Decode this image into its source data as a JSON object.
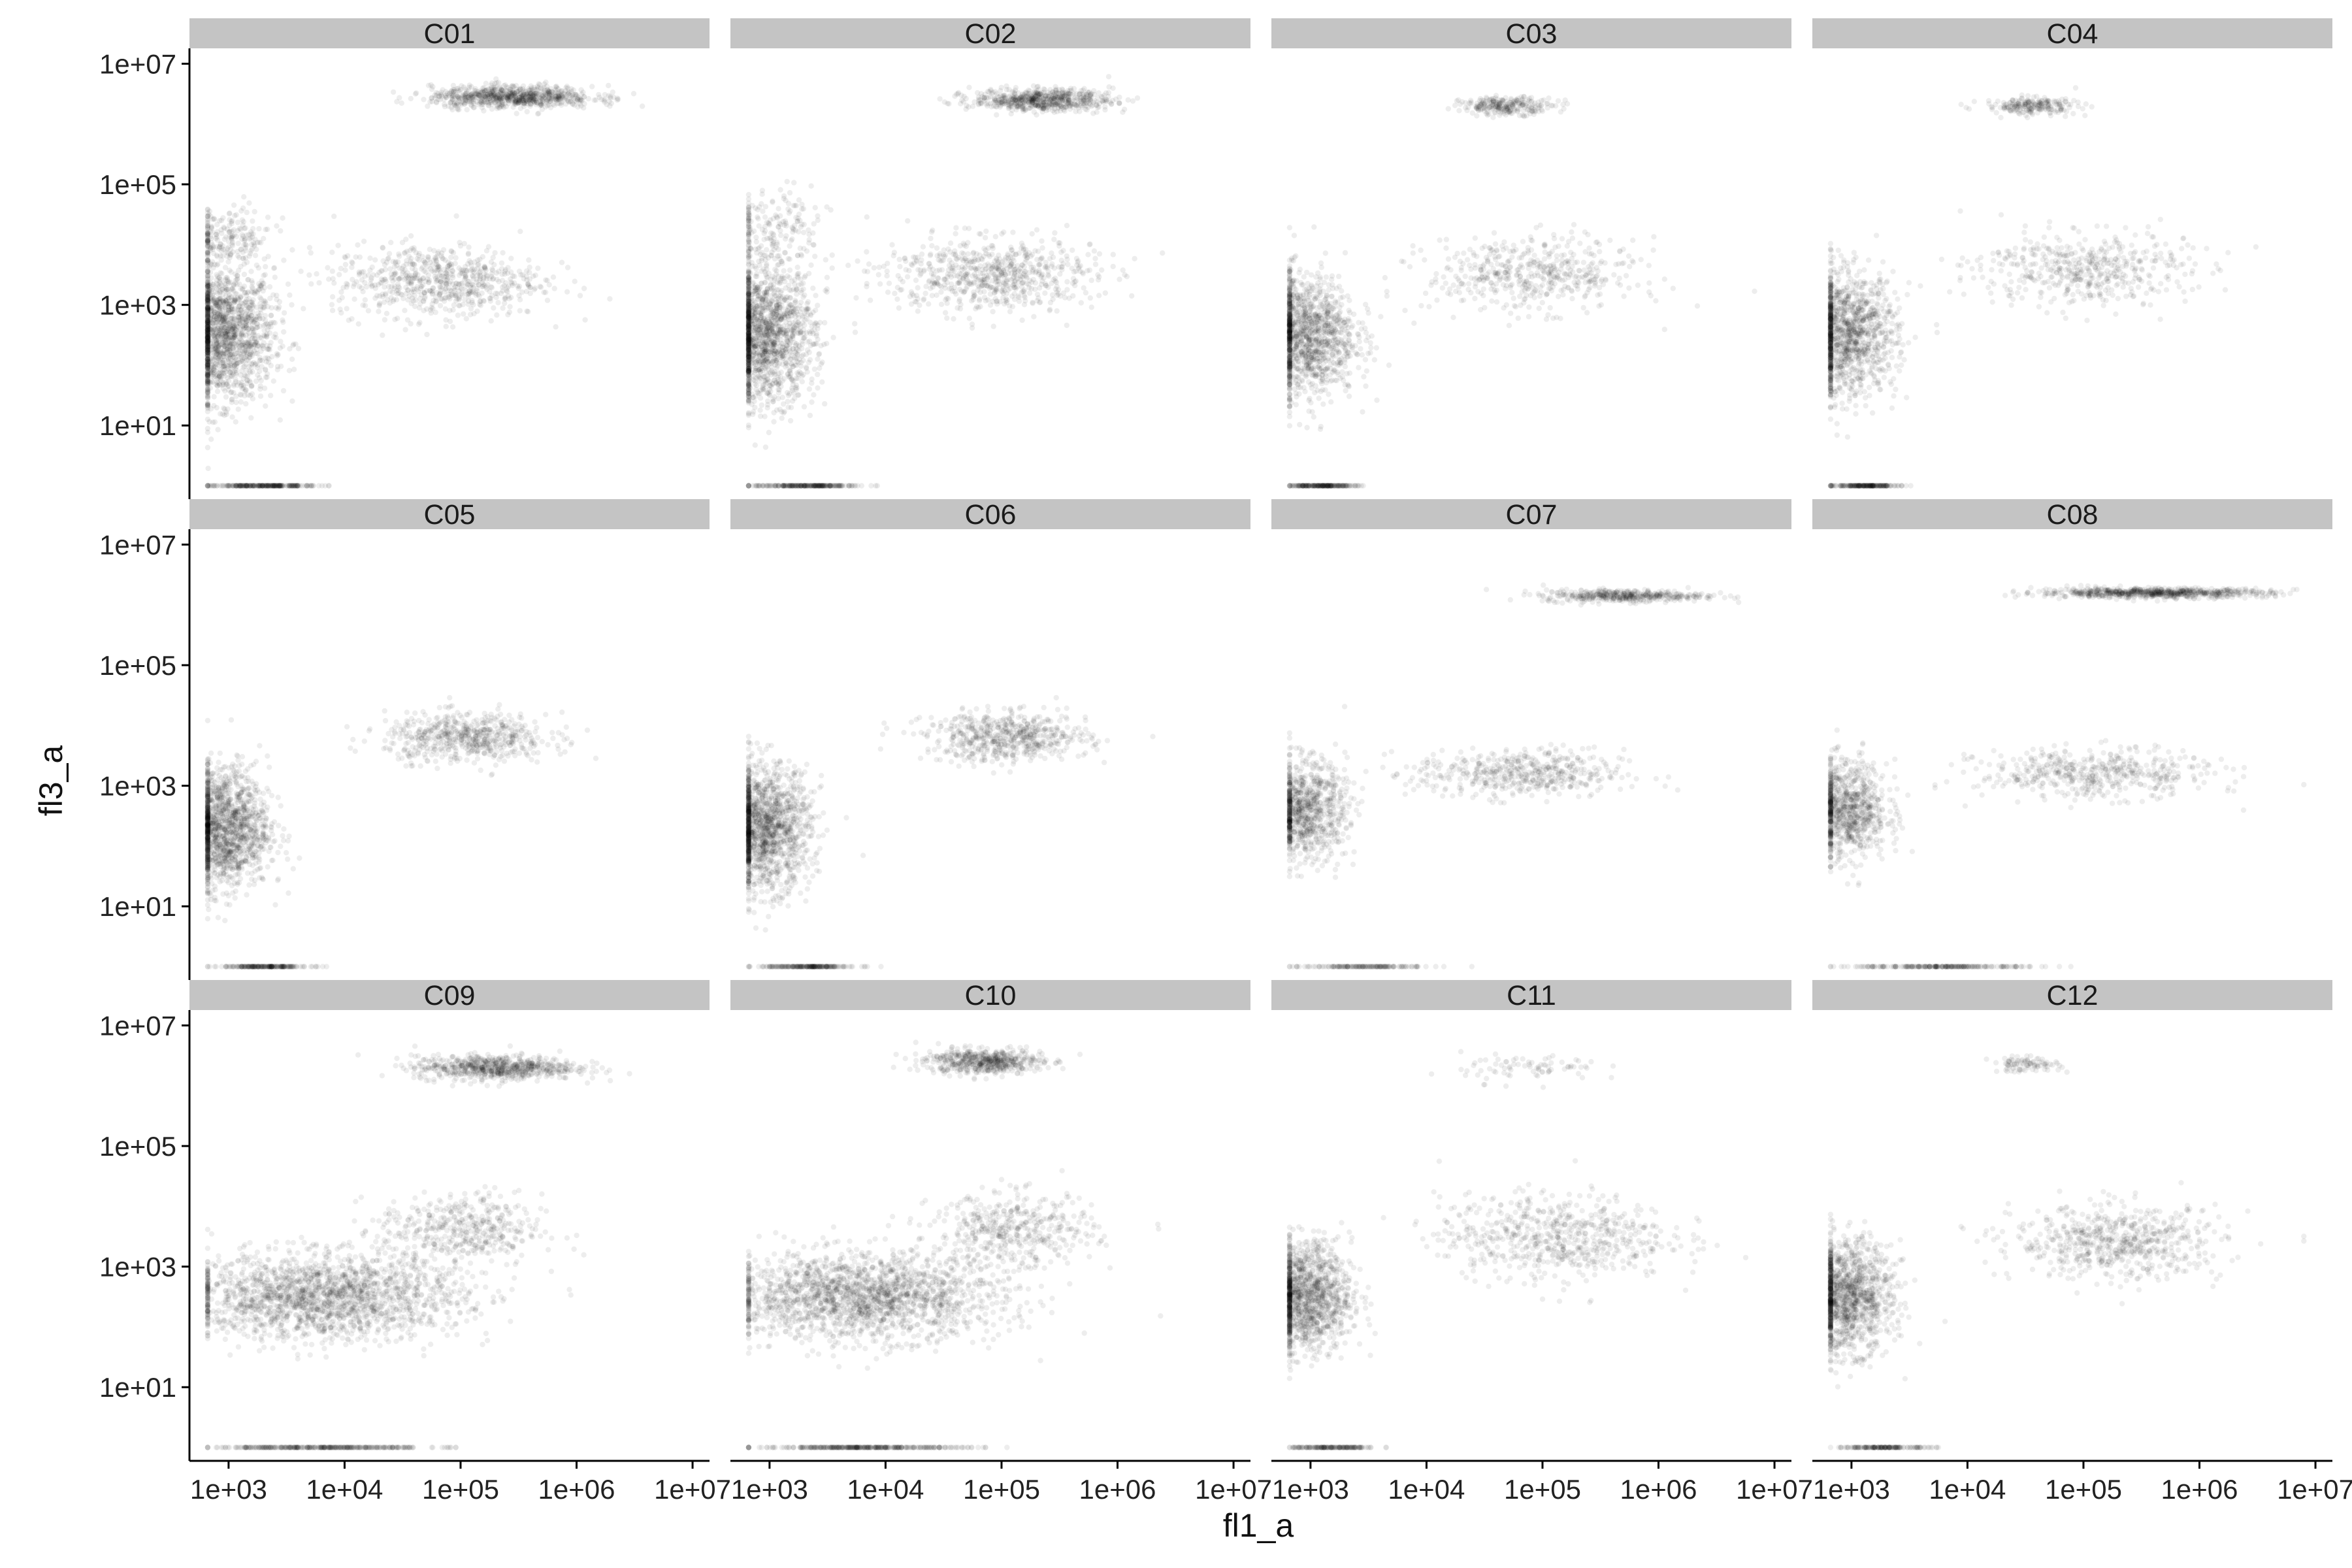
{
  "chart_data": {
    "type": "scatter",
    "layout": "facet_wrap",
    "facet_rows": 3,
    "facet_cols": 4,
    "xlabel": "fl1_a",
    "ylabel": "fl3_a",
    "x_scale": "log10",
    "y_scale": "log10",
    "xlim": [
      460,
      14000000
    ],
    "ylim": [
      0.6,
      18000000
    ],
    "x_ticks": [
      1000,
      10000,
      100000,
      1000000,
      10000000
    ],
    "x_tick_labels": [
      "1e+03",
      "1e+04",
      "1e+05",
      "1e+06",
      "1e+07"
    ],
    "y_ticks": [
      10,
      1000,
      100000,
      10000000
    ],
    "y_tick_labels": [
      "1e+01",
      "1e+03",
      "1e+05",
      "1e+07"
    ],
    "point_color": "#000000",
    "point_alpha": 0.1,
    "strip_color": "#c4c4c4",
    "grid": false,
    "legend": "none",
    "panels": [
      {
        "label": "C01",
        "clusters": [
          {
            "x_log10": 2.95,
            "y_log10": 2.5,
            "x_sd": 0.22,
            "y_sd": 0.55,
            "n": 1600
          },
          {
            "x_log10": 4.8,
            "y_log10": 3.4,
            "x_sd": 0.45,
            "y_sd": 0.3,
            "n": 700
          },
          {
            "x_log10": 5.45,
            "y_log10": 6.45,
            "x_sd": 0.35,
            "y_sd": 0.09,
            "n": 800
          },
          {
            "x_log10": 2.95,
            "y_log10": 4.1,
            "x_sd": 0.22,
            "y_sd": 0.25,
            "n": 220
          },
          {
            "x_log10": 3.3,
            "y_log10": 0,
            "x_sd": 0.22,
            "y_sd": 0,
            "n": 260
          }
        ]
      },
      {
        "label": "C02",
        "clusters": [
          {
            "x_log10": 2.95,
            "y_log10": 2.5,
            "x_sd": 0.22,
            "y_sd": 0.55,
            "n": 1600
          },
          {
            "x_log10": 4.9,
            "y_log10": 3.5,
            "x_sd": 0.45,
            "y_sd": 0.3,
            "n": 700
          },
          {
            "x_log10": 5.35,
            "y_log10": 6.4,
            "x_sd": 0.3,
            "y_sd": 0.09,
            "n": 650
          },
          {
            "x_log10": 3.0,
            "y_log10": 4.2,
            "x_sd": 0.25,
            "y_sd": 0.35,
            "n": 200
          },
          {
            "x_log10": 3.3,
            "y_log10": 0,
            "x_sd": 0.22,
            "y_sd": 0,
            "n": 240
          }
        ]
      },
      {
        "label": "C03",
        "clusters": [
          {
            "x_log10": 2.95,
            "y_log10": 2.5,
            "x_sd": 0.22,
            "y_sd": 0.5,
            "n": 1300
          },
          {
            "x_log10": 4.9,
            "y_log10": 3.5,
            "x_sd": 0.45,
            "y_sd": 0.3,
            "n": 500
          },
          {
            "x_log10": 4.7,
            "y_log10": 6.3,
            "x_sd": 0.2,
            "y_sd": 0.07,
            "n": 260
          },
          {
            "x_log10": 3.1,
            "y_log10": 0,
            "x_sd": 0.15,
            "y_sd": 0,
            "n": 200
          }
        ]
      },
      {
        "label": "C04",
        "clusters": [
          {
            "x_log10": 2.95,
            "y_log10": 2.5,
            "x_sd": 0.22,
            "y_sd": 0.5,
            "n": 1300
          },
          {
            "x_log10": 5.0,
            "y_log10": 3.6,
            "x_sd": 0.45,
            "y_sd": 0.3,
            "n": 500
          },
          {
            "x_log10": 4.55,
            "y_log10": 6.3,
            "x_sd": 0.2,
            "y_sd": 0.07,
            "n": 220
          },
          {
            "x_log10": 3.1,
            "y_log10": 0,
            "x_sd": 0.15,
            "y_sd": 0,
            "n": 200
          }
        ]
      },
      {
        "label": "C05",
        "clusters": [
          {
            "x_log10": 2.95,
            "y_log10": 2.3,
            "x_sd": 0.2,
            "y_sd": 0.5,
            "n": 1500
          },
          {
            "x_log10": 5.05,
            "y_log10": 3.8,
            "x_sd": 0.35,
            "y_sd": 0.2,
            "n": 600
          },
          {
            "x_log10": 3.3,
            "y_log10": 0,
            "x_sd": 0.2,
            "y_sd": 0,
            "n": 200
          }
        ]
      },
      {
        "label": "C06",
        "clusters": [
          {
            "x_log10": 2.95,
            "y_log10": 2.3,
            "x_sd": 0.2,
            "y_sd": 0.5,
            "n": 1500
          },
          {
            "x_log10": 5.05,
            "y_log10": 3.8,
            "x_sd": 0.35,
            "y_sd": 0.2,
            "n": 600
          },
          {
            "x_log10": 3.3,
            "y_log10": 0,
            "x_sd": 0.2,
            "y_sd": 0,
            "n": 200
          }
        ]
      },
      {
        "label": "C07",
        "clusters": [
          {
            "x_log10": 2.95,
            "y_log10": 2.6,
            "x_sd": 0.18,
            "y_sd": 0.4,
            "n": 900
          },
          {
            "x_log10": 4.8,
            "y_log10": 3.2,
            "x_sd": 0.45,
            "y_sd": 0.2,
            "n": 500
          },
          {
            "x_log10": 5.7,
            "y_log10": 6.15,
            "x_sd": 0.35,
            "y_sd": 0.05,
            "n": 420
          },
          {
            "x_log10": 3.4,
            "y_log10": 0,
            "x_sd": 0.3,
            "y_sd": 0,
            "n": 150
          }
        ]
      },
      {
        "label": "C08",
        "clusters": [
          {
            "x_log10": 2.95,
            "y_log10": 2.6,
            "x_sd": 0.18,
            "y_sd": 0.4,
            "n": 900
          },
          {
            "x_log10": 5.1,
            "y_log10": 3.2,
            "x_sd": 0.5,
            "y_sd": 0.2,
            "n": 500
          },
          {
            "x_log10": 5.6,
            "y_log10": 6.2,
            "x_sd": 0.5,
            "y_sd": 0.04,
            "n": 700
          },
          {
            "x_log10": 3.8,
            "y_log10": 0,
            "x_sd": 0.4,
            "y_sd": 0,
            "n": 220
          }
        ]
      },
      {
        "label": "C09",
        "clusters": [
          {
            "x_log10": 3.8,
            "y_log10": 2.5,
            "x_sd": 0.6,
            "y_sd": 0.35,
            "n": 1900
          },
          {
            "x_log10": 5.0,
            "y_log10": 3.6,
            "x_sd": 0.35,
            "y_sd": 0.3,
            "n": 450
          },
          {
            "x_log10": 5.3,
            "y_log10": 6.3,
            "x_sd": 0.35,
            "y_sd": 0.1,
            "n": 700
          },
          {
            "x_log10": 3.8,
            "y_log10": 0,
            "x_sd": 0.45,
            "y_sd": 0,
            "n": 320
          }
        ]
      },
      {
        "label": "C10",
        "clusters": [
          {
            "x_log10": 3.8,
            "y_log10": 2.5,
            "x_sd": 0.6,
            "y_sd": 0.35,
            "n": 1900
          },
          {
            "x_log10": 5.1,
            "y_log10": 3.6,
            "x_sd": 0.35,
            "y_sd": 0.3,
            "n": 450
          },
          {
            "x_log10": 4.85,
            "y_log10": 6.4,
            "x_sd": 0.25,
            "y_sd": 0.1,
            "n": 550
          },
          {
            "x_log10": 3.8,
            "y_log10": 0,
            "x_sd": 0.45,
            "y_sd": 0,
            "n": 320
          }
        ]
      },
      {
        "label": "C11",
        "clusters": [
          {
            "x_log10": 2.95,
            "y_log10": 2.5,
            "x_sd": 0.2,
            "y_sd": 0.45,
            "n": 1300
          },
          {
            "x_log10": 5.1,
            "y_log10": 3.5,
            "x_sd": 0.5,
            "y_sd": 0.35,
            "n": 650
          },
          {
            "x_log10": 4.9,
            "y_log10": 6.3,
            "x_sd": 0.3,
            "y_sd": 0.12,
            "n": 80
          },
          {
            "x_log10": 3.2,
            "y_log10": 0,
            "x_sd": 0.2,
            "y_sd": 0,
            "n": 160
          }
        ]
      },
      {
        "label": "C12",
        "clusters": [
          {
            "x_log10": 2.95,
            "y_log10": 2.5,
            "x_sd": 0.2,
            "y_sd": 0.45,
            "n": 1300
          },
          {
            "x_log10": 5.3,
            "y_log10": 3.4,
            "x_sd": 0.45,
            "y_sd": 0.3,
            "n": 650
          },
          {
            "x_log10": 4.5,
            "y_log10": 6.35,
            "x_sd": 0.15,
            "y_sd": 0.06,
            "n": 90
          },
          {
            "x_log10": 3.3,
            "y_log10": 0,
            "x_sd": 0.2,
            "y_sd": 0,
            "n": 160
          }
        ]
      }
    ]
  }
}
